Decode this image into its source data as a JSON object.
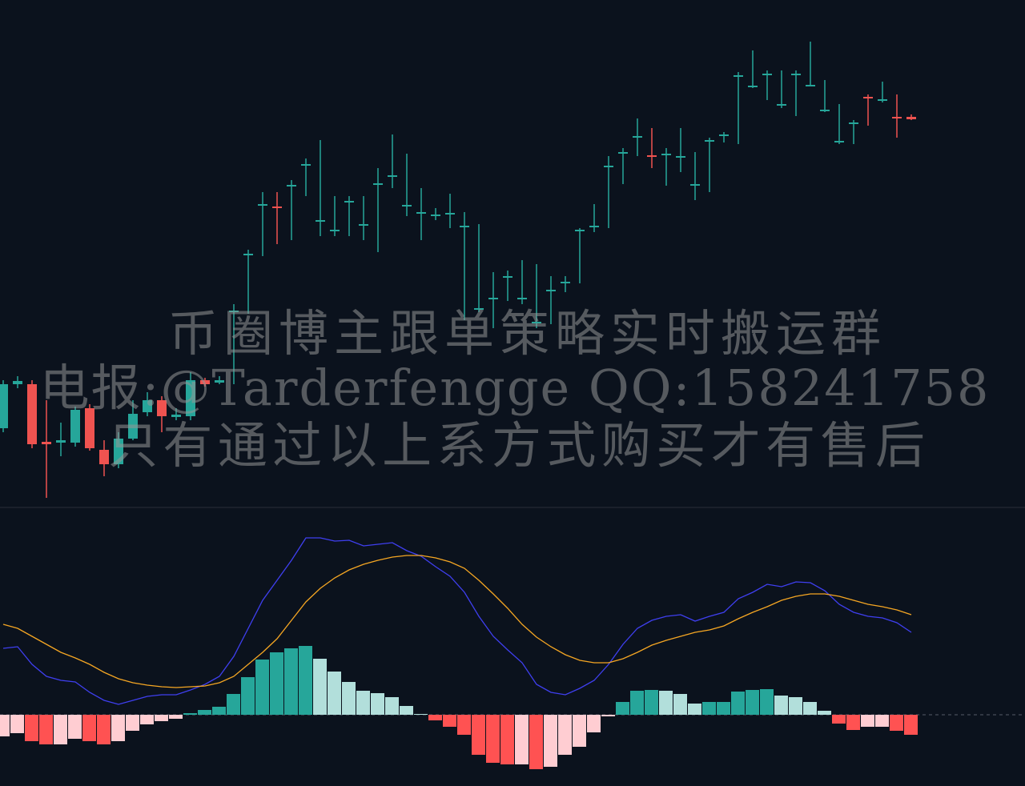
{
  "chart_data": [
    {
      "type": "candlestick",
      "up_color": "#26a69a",
      "down_color": "#ef5350",
      "open": [
        465,
        520,
        520,
        448,
        447,
        447,
        490,
        438,
        420,
        452,
        485,
        500,
        479,
        480,
        525,
        522,
        612,
        683,
        745,
        742,
        769,
        795,
        725,
        713,
        749,
        720,
        771,
        781,
        744,
        735,
        732,
        733,
        718,
        615,
        628,
        655,
        627,
        598,
        638,
        648,
        713,
        718,
        793,
        810,
        830,
        806,
        807,
        805,
        770,
        825,
        832,
        906,
        893,
        908,
        868,
        908,
        894,
        863,
        824,
        847,
        879,
        876,
        854,
        854
      ],
      "high": [
        525,
        530,
        525,
        500,
        472,
        492,
        495,
        450,
        460,
        500,
        510,
        505,
        490,
        535,
        528,
        530,
        620,
        688,
        760,
        760,
        775,
        802,
        825,
        755,
        755,
        755,
        790,
        832,
        808,
        765,
        740,
        758,
        735,
        720,
        660,
        662,
        675,
        670,
        655,
        655,
        715,
        745,
        805,
        815,
        852,
        840,
        815,
        840,
        810,
        828,
        835,
        910,
        937,
        912,
        912,
        912,
        948,
        900,
        870,
        850,
        882,
        898,
        882,
        857
      ],
      "low": [
        460,
        515,
        440,
        378,
        430,
        442,
        437,
        405,
        415,
        450,
        480,
        460,
        475,
        475,
        517,
        520,
        520,
        608,
        680,
        695,
        700,
        755,
        705,
        705,
        705,
        700,
        685,
        765,
        730,
        700,
        725,
        715,
        600,
        610,
        590,
        624,
        620,
        590,
        595,
        635,
        646,
        710,
        715,
        770,
        805,
        790,
        768,
        785,
        750,
        760,
        822,
        820,
        890,
        875,
        865,
        855,
        892,
        860,
        820,
        820,
        843,
        872,
        828,
        850
      ],
      "close": [
        520,
        524,
        445,
        445,
        450,
        488,
        440,
        420,
        452,
        483,
        500,
        480,
        482,
        525,
        520,
        525,
        612,
        683,
        745,
        740,
        769,
        795,
        725,
        713,
        749,
        720,
        771,
        781,
        744,
        735,
        732,
        734,
        718,
        615,
        628,
        655,
        628,
        598,
        638,
        648,
        713,
        718,
        793,
        810,
        830,
        805,
        808,
        805,
        770,
        825,
        832,
        906,
        893,
        908,
        870,
        908,
        894,
        863,
        824,
        847,
        877,
        876,
        853,
        851
      ],
      "annotations": [
        "币圈博主跟单策略实时搬运群",
        "电报:@Tarderfengge QQ:158241758",
        "只有通过以上系方式购买才有售后"
      ]
    },
    {
      "type": "macd",
      "histogram": [
        -27,
        -23,
        -33,
        -37,
        -37,
        -30,
        -33,
        -37,
        -33,
        -20,
        -12,
        -8,
        -5,
        2,
        6,
        10,
        26,
        47,
        69,
        78,
        83,
        86,
        70,
        54,
        41,
        30,
        27,
        22,
        11,
        1,
        -7,
        -15,
        -25,
        -50,
        -60,
        -62,
        -62,
        -68,
        -65,
        -50,
        -40,
        -22,
        -2,
        16,
        30,
        31,
        30,
        26,
        14,
        16,
        16,
        29,
        31,
        32,
        24,
        22,
        16,
        5,
        -11,
        -19,
        -15,
        -15,
        -20,
        -25
      ],
      "histogram_colors": {
        "rising_positive": "#26a69a",
        "falling_positive": "#b2dfdb",
        "falling_negative": "#ff5252",
        "rising_negative": "#ffcdd2"
      },
      "series": [
        {
          "color": "#3f3ff0",
          "values": [
            83,
            85,
            63,
            48,
            43,
            41,
            28,
            18,
            13,
            18,
            23,
            25,
            25,
            31,
            38,
            48,
            73,
            108,
            143,
            168,
            193,
            221,
            221,
            217,
            218,
            211,
            213,
            215,
            205,
            198,
            185,
            173,
            153,
            123,
            98,
            81,
            65,
            38,
            28,
            25,
            33,
            43,
            63,
            88,
            108,
            118,
            123,
            125,
            117,
            123,
            128,
            145,
            153,
            163,
            160,
            166,
            165,
            155,
            138,
            128,
            123,
            121,
            115,
            103
          ]
        },
        {
          "color": "#f5a623",
          "values": [
            113,
            108,
            98,
            88,
            78,
            71,
            63,
            53,
            45,
            40,
            37,
            35,
            34,
            35,
            36,
            40,
            48,
            63,
            78,
            95,
            118,
            141,
            158,
            171,
            181,
            188,
            193,
            197,
            199,
            199,
            196,
            191,
            183,
            168,
            151,
            133,
            113,
            97,
            85,
            75,
            68,
            65,
            65,
            70,
            78,
            87,
            93,
            98,
            103,
            106,
            111,
            120,
            128,
            135,
            143,
            148,
            151,
            151,
            148,
            143,
            138,
            135,
            131,
            125
          ]
        }
      ]
    }
  ]
}
